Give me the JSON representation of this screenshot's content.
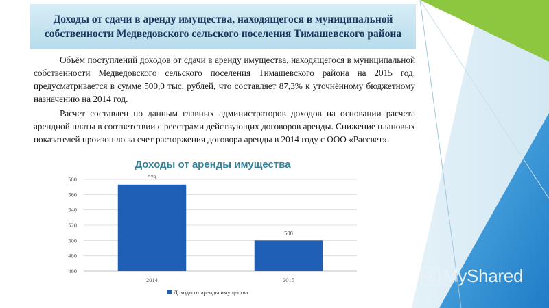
{
  "slide": {
    "title": "Доходы от сдачи в аренду имущества, находящегося в муниципальной собственности Медведовского сельского поселения Тимашевского района",
    "paragraphs": [
      "Объём поступлений доходов от сдачи в аренду имущества, находящегося в муниципальной собственности Медведовского сельского поселения Тимашевского района на 2015 год, предусматривается в сумме 500,0 тыс. рублей, что составляет 87,3% к уточнённому бюджетному назначению на 2014 год.",
      "Расчет составлен по данным главных администраторов доходов на основании расчета арендной платы в соответствии с реестрами действующих договоров аренды. Снижение плановых показателей произошло за счет расторжения договора аренды в 2014 году с ООО «Рассвет»."
    ]
  },
  "chart_data": {
    "type": "bar",
    "title": "Доходы от аренды имущества",
    "categories": [
      "2014",
      "2015"
    ],
    "series": [
      {
        "name": "Доходы от аренды имущества",
        "values": [
          573,
          500
        ],
        "color": "#1f5fb5"
      }
    ],
    "data_labels": [
      "573",
      "500"
    ],
    "ylim": [
      460,
      580
    ],
    "yticks": [
      460,
      480,
      500,
      520,
      540,
      560,
      580
    ],
    "xlabel": "",
    "ylabel": "",
    "grid": true,
    "legend": "bottom"
  },
  "watermark": {
    "text": "MyShared",
    "icon": "myshared-logo-icon"
  },
  "colors": {
    "accent_green": "#8dc63f",
    "accent_blue": "#2e8fd4",
    "bar": "#1f5fb5",
    "title_text": "#17365d",
    "chart_title": "#31849b"
  }
}
